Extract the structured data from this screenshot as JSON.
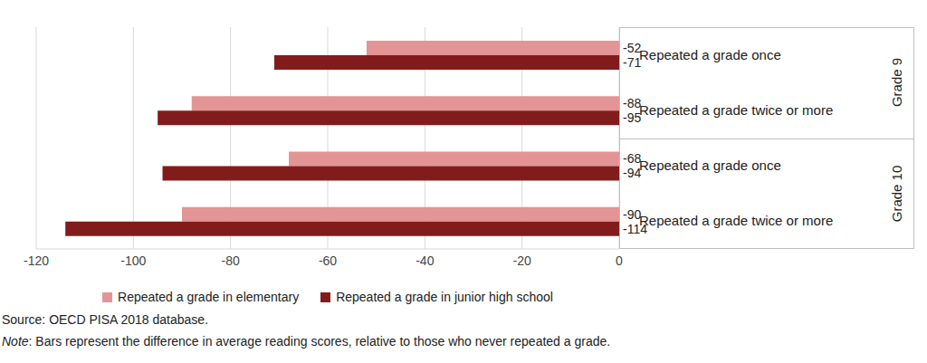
{
  "chart_data": {
    "type": "bar",
    "orientation": "horizontal",
    "categories": [
      "Repeated a grade once",
      "Repeated a grade twice or more",
      "Repeated a grade once",
      "Repeated a grade twice or more"
    ],
    "category_groups": [
      "Grade 9",
      "Grade 9",
      "Grade 10",
      "Grade 10"
    ],
    "series": [
      {
        "name": "Repeated a grade in elementary",
        "color": "#e39494",
        "values": [
          -52,
          -88,
          -68,
          -90
        ]
      },
      {
        "name": "Repeated a grade in junior high school",
        "color": "#821c1c",
        "values": [
          -71,
          -95,
          -94,
          -114
        ]
      }
    ],
    "xlim": [
      -120,
      0
    ],
    "xticks": [
      -120,
      -100,
      -80,
      -60,
      -40,
      -20,
      0
    ],
    "grid": true,
    "data_labels": true,
    "legend": "bottom",
    "source": "Source: OECD PISA 2018 database.",
    "note": "Note: Bars represent the difference in average reading scores, relative to those who never repeated a grade."
  }
}
